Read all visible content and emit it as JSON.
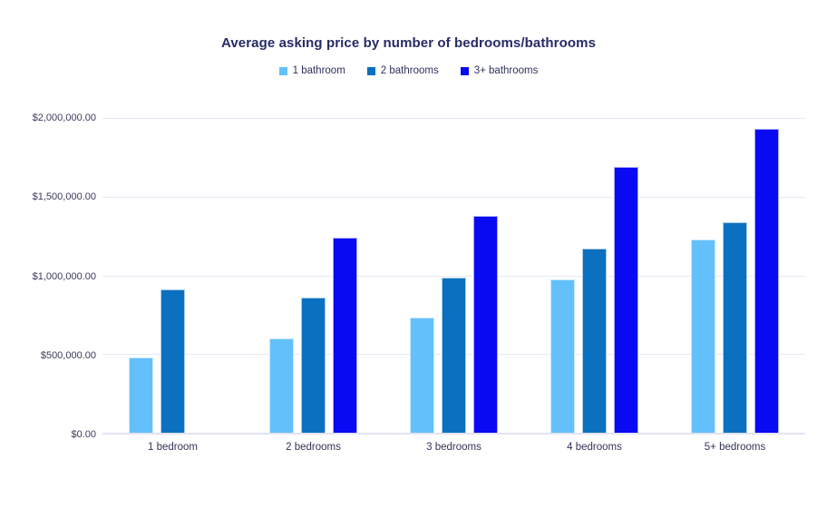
{
  "page": {
    "background": "#ffffff"
  },
  "chart_data": {
    "type": "bar",
    "title": "Average asking price by number of bedrooms/bathrooms",
    "categories": [
      "1 bedroom",
      "2 bedrooms",
      "3 bedrooms",
      "4 bedrooms",
      "5+ bedrooms"
    ],
    "series": [
      {
        "name": "1 bathroom",
        "color": "#63c0fb",
        "values": [
          480000,
          600000,
          730000,
          975000,
          1225000
        ]
      },
      {
        "name": "2 bathrooms",
        "color": "#0b70bf",
        "values": [
          910000,
          860000,
          985000,
          1170000,
          1335000
        ]
      },
      {
        "name": "3+ bathrooms",
        "color": "#0909f2",
        "values": [
          null,
          1240000,
          1375000,
          1690000,
          1930000
        ]
      }
    ],
    "y_ticks": [
      "$0.00",
      "$500,000.00",
      "$1,000,000.00",
      "$1,500,000.00",
      "$2,000,000.00"
    ],
    "ylim": [
      0,
      2000000
    ],
    "xlabel": "",
    "ylabel": "",
    "grid": true,
    "legend_position": "top",
    "colors": {
      "title_text": "#262b66",
      "legend_text": "#2e3260",
      "axis_text": "#3a3a5c",
      "gridline": "#e9e9f7",
      "baseline": "#e3e3f4"
    }
  }
}
